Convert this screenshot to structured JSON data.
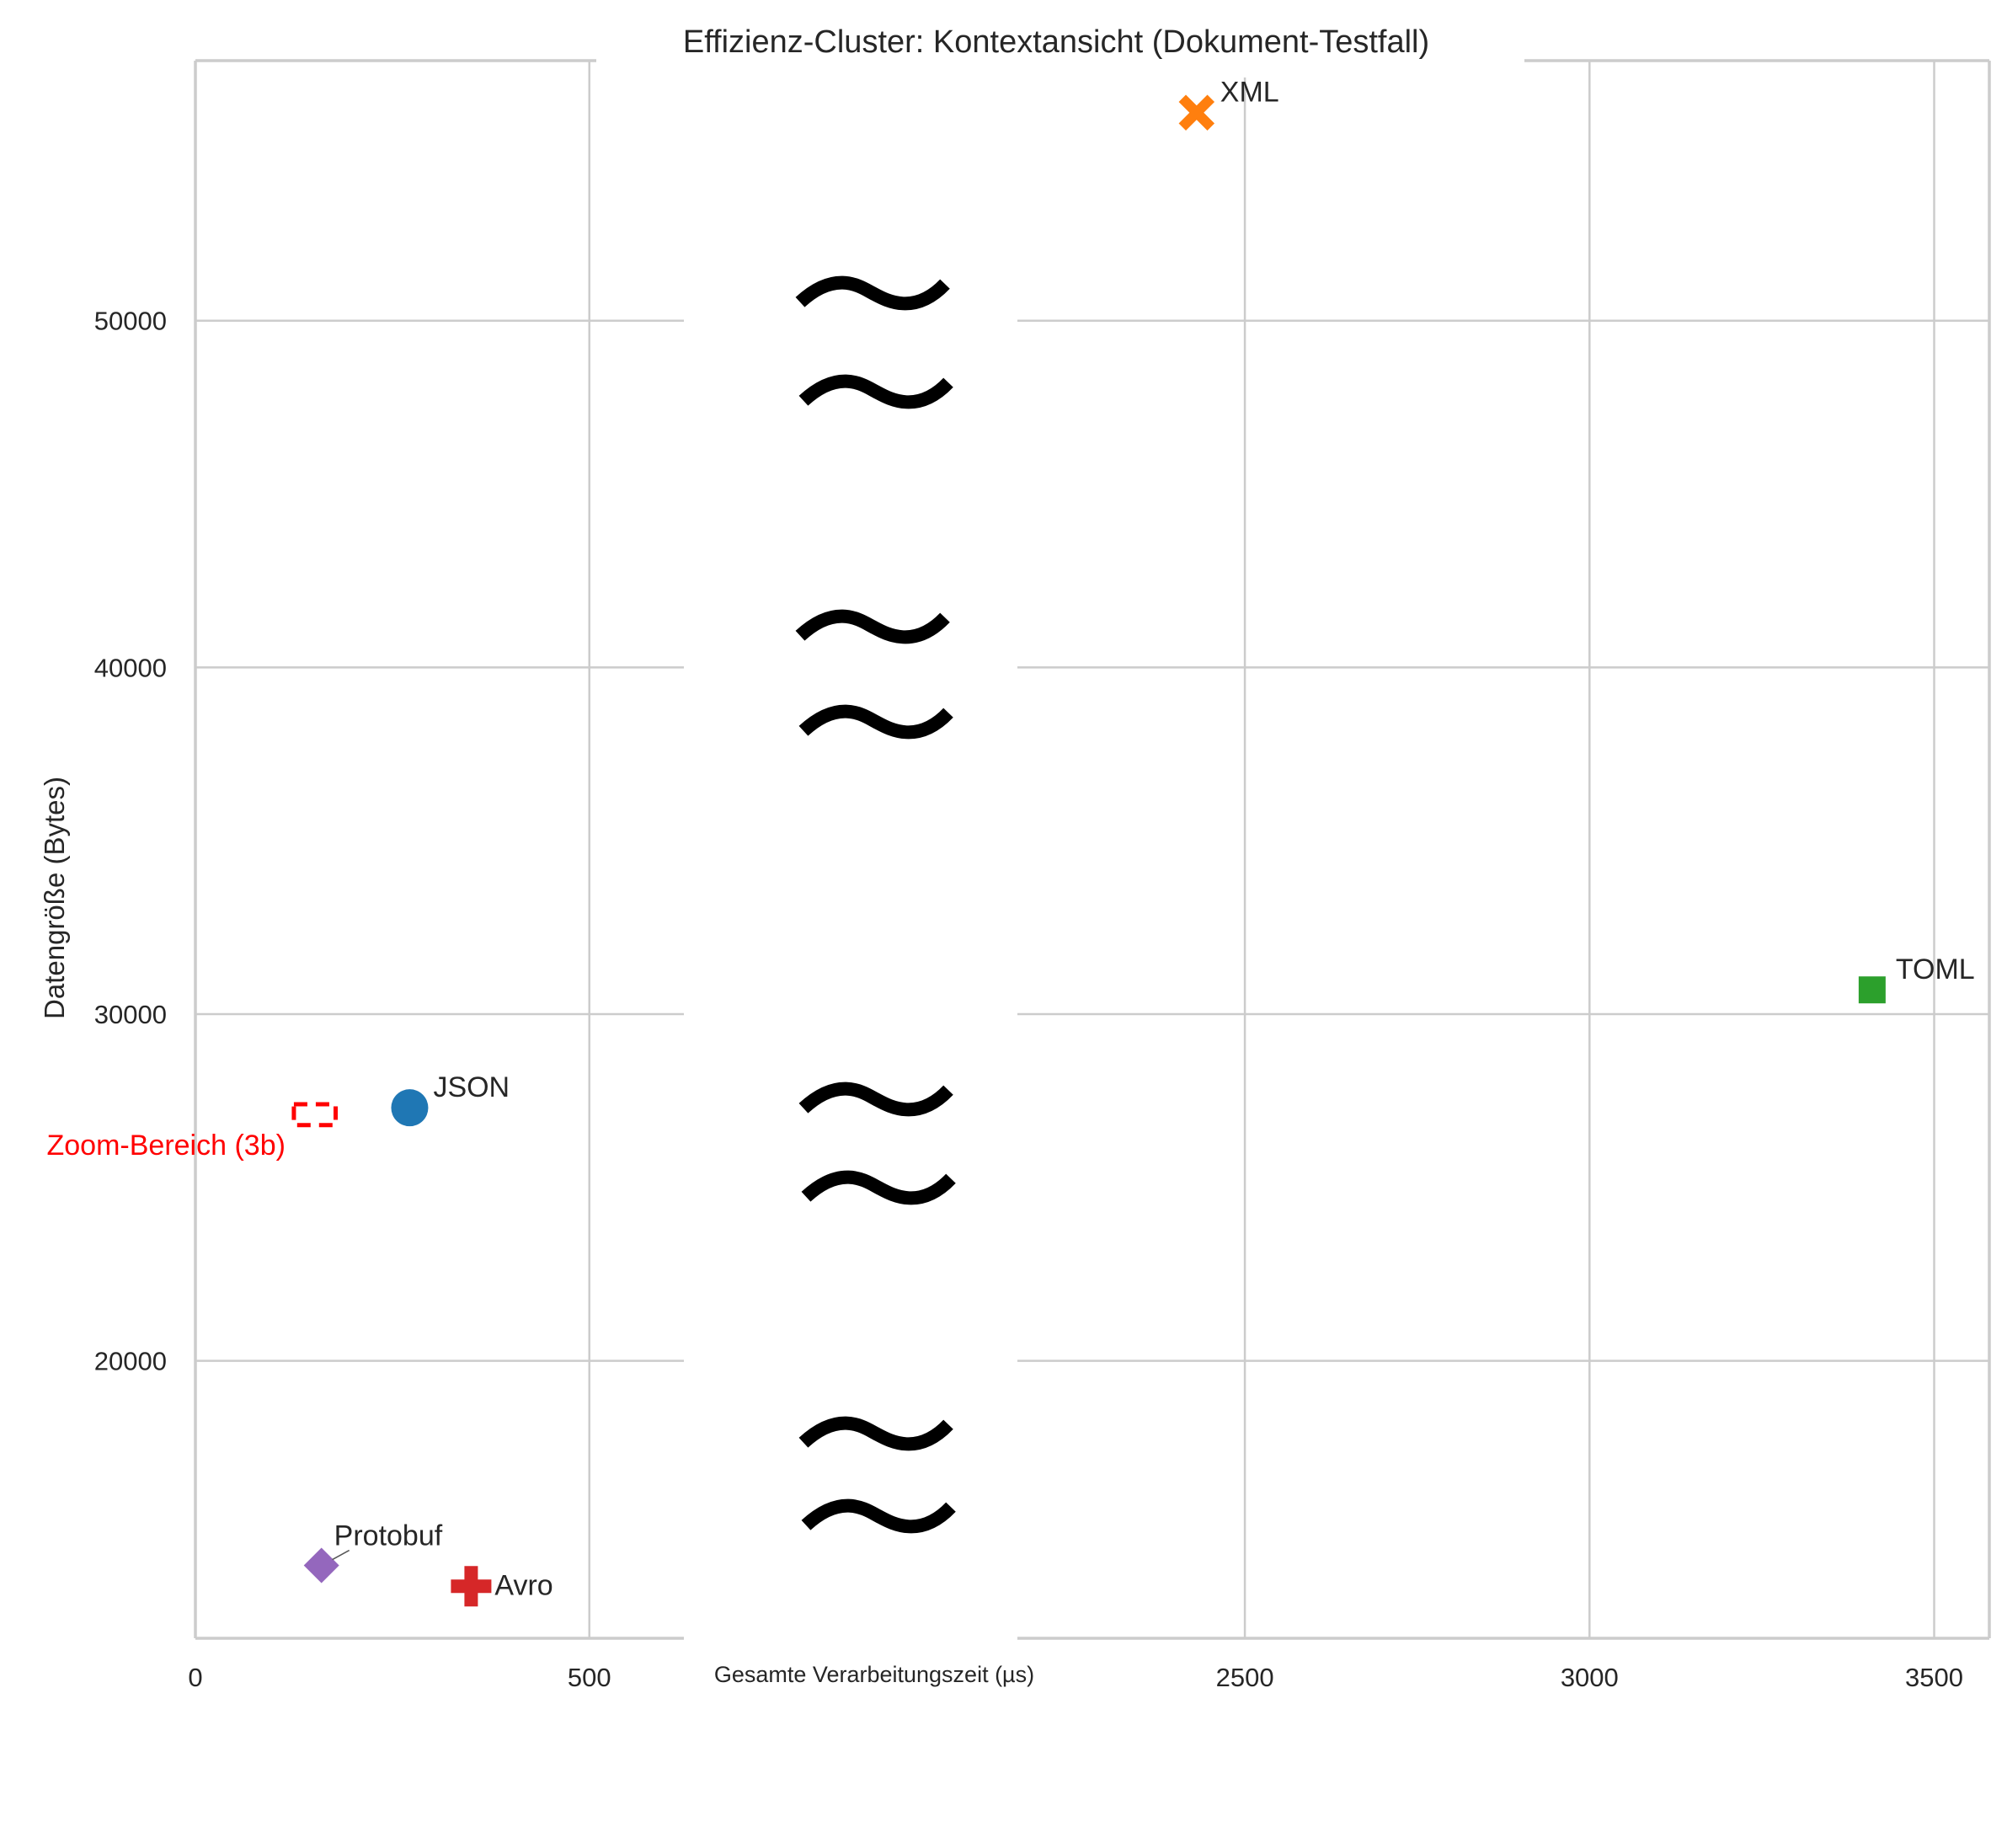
{
  "chart_data": {
    "type": "scatter",
    "title": "Effizienz-Cluster: Kontextansicht (Dokument-Testfall)",
    "xlabel": "Gesamte Verarbeitungszeit (µs)",
    "ylabel": "Datengröße (Bytes)",
    "grid": true,
    "axis_break": {
      "x": {
        "segments": [
          [
            0,
            620
          ],
          [
            2170,
            3580
          ]
        ]
      },
      "y_tick_labels_at": [
        20000,
        30000,
        40000,
        50000
      ],
      "break_symbol": "≈"
    },
    "x_ticks_left": [
      0,
      500
    ],
    "x_ticks_right": [
      2500,
      3000,
      3500
    ],
    "x_tick_labels_left": [
      "0",
      "500"
    ],
    "x_tick_labels_right": [
      "2500",
      "3000",
      "3500"
    ],
    "y_ticks": [
      20000,
      30000,
      40000,
      50000
    ],
    "y_tick_labels": [
      "20000",
      "30000",
      "40000",
      "50000"
    ],
    "ylim": [
      12000,
      57500
    ],
    "series": [
      {
        "label": "JSON",
        "x": 272,
        "y": 27300,
        "color": "#1f77b4",
        "marker": "circle"
      },
      {
        "label": "XML",
        "x": 2430,
        "y": 56000,
        "color": "#ff7f0e",
        "marker": "x"
      },
      {
        "label": "TOML",
        "x": 3410,
        "y": 30700,
        "color": "#2ca02c",
        "marker": "square"
      },
      {
        "label": "Avro",
        "x": 350,
        "y": 13500,
        "color": "#d62728",
        "marker": "plus"
      },
      {
        "label": "Protobuf",
        "x": 160,
        "y": 14100,
        "color": "#9467bd",
        "marker": "diamond"
      }
    ],
    "annotation": {
      "text": "Zoom-Bereich (3b)",
      "color": "#ff0000",
      "box": {
        "x0": 125,
        "x1": 178,
        "y0": 26800,
        "y1": 27400
      }
    }
  }
}
